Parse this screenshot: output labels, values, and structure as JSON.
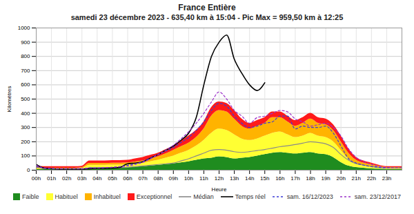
{
  "chart_data": {
    "type": "area",
    "title": "France Entière",
    "subtitle": "samedi 23 décembre 2023 - 635,40 km à 15:04 - Pic Max = 959,50 km à 12:25",
    "x_label": "Heure",
    "y_label": "Kilomètres",
    "x": [
      0,
      0.5,
      1,
      1.5,
      2,
      2.5,
      3,
      3.5,
      4,
      4.5,
      5,
      5.5,
      6,
      6.5,
      7,
      7.5,
      8,
      8.5,
      9,
      9.5,
      10,
      10.5,
      11,
      11.5,
      12,
      12.5,
      13,
      13.5,
      14,
      14.5,
      15,
      15.5,
      16,
      16.5,
      17,
      17.5,
      18,
      18.5,
      19,
      19.5,
      20,
      20.5,
      21,
      21.5,
      22,
      22.5,
      23,
      23.5,
      24
    ],
    "xlim": [
      0,
      24
    ],
    "xticks": [
      {
        "value": 0,
        "label": "00h"
      },
      {
        "value": 1,
        "label": "01h"
      },
      {
        "value": 2,
        "label": "02h"
      },
      {
        "value": 3,
        "label": "03h"
      },
      {
        "value": 4,
        "label": "04h"
      },
      {
        "value": 5,
        "label": "05h"
      },
      {
        "value": 6,
        "label": "06h"
      },
      {
        "value": 7,
        "label": "07h"
      },
      {
        "value": 8,
        "label": "08h"
      },
      {
        "value": 9,
        "label": "09h"
      },
      {
        "value": 10,
        "label": "10h"
      },
      {
        "value": 11,
        "label": "11h"
      },
      {
        "value": 12,
        "label": "12h"
      },
      {
        "value": 13,
        "label": "13h"
      },
      {
        "value": 14,
        "label": "14h"
      },
      {
        "value": 15,
        "label": "15h"
      },
      {
        "value": 16,
        "label": "16h"
      },
      {
        "value": 17,
        "label": "17h"
      },
      {
        "value": 18,
        "label": "18h"
      },
      {
        "value": 19,
        "label": "19h"
      },
      {
        "value": 20,
        "label": "20h"
      },
      {
        "value": 21,
        "label": "21h"
      },
      {
        "value": 22,
        "label": "22h"
      },
      {
        "value": 23,
        "label": "23h"
      }
    ],
    "ylim": [
      0,
      1000
    ],
    "yticks": [
      0,
      100,
      200,
      300,
      400,
      500,
      600,
      700,
      800,
      900,
      1000
    ],
    "grid": true,
    "legend": "bottom",
    "stacked": true,
    "series": [
      {
        "name": "Faible",
        "type": "area",
        "color": "#1f8c1f",
        "values": [
          5,
          5,
          5,
          5,
          5,
          5,
          5,
          18,
          18,
          18,
          18,
          18,
          20,
          22,
          25,
          30,
          35,
          40,
          45,
          52,
          60,
          70,
          80,
          85,
          95,
          90,
          80,
          85,
          90,
          100,
          110,
          120,
          125,
          120,
          115,
          120,
          125,
          115,
          110,
          90,
          55,
          30,
          20,
          15,
          10,
          8,
          5,
          5,
          5
        ]
      },
      {
        "name": "Habituel",
        "type": "area",
        "color": "#ffff33",
        "values": [
          5,
          5,
          5,
          5,
          5,
          5,
          7,
          17,
          17,
          17,
          18,
          18,
          20,
          23,
          25,
          30,
          35,
          45,
          55,
          68,
          80,
          100,
          130,
          175,
          195,
          190,
          170,
          135,
          120,
          120,
          130,
          140,
          145,
          130,
          115,
          120,
          135,
          125,
          120,
          110,
          85,
          50,
          25,
          17,
          15,
          10,
          7,
          7,
          7
        ]
      },
      {
        "name": "Inhabituel",
        "type": "area",
        "color": "#ffb300",
        "values": [
          8,
          5,
          5,
          5,
          5,
          5,
          6,
          13,
          13,
          13,
          14,
          14,
          12,
          13,
          15,
          20,
          25,
          30,
          40,
          45,
          50,
          60,
          80,
          120,
          130,
          130,
          110,
          90,
          80,
          90,
          90,
          110,
          100,
          90,
          80,
          90,
          100,
          90,
          90,
          80,
          60,
          40,
          25,
          18,
          15,
          10,
          8,
          8,
          8
        ]
      },
      {
        "name": "Exceptionnel",
        "type": "area",
        "color": "#ff1a1a",
        "values": [
          12,
          10,
          10,
          10,
          10,
          10,
          10,
          17,
          17,
          17,
          18,
          18,
          18,
          22,
          25,
          25,
          25,
          30,
          30,
          40,
          50,
          50,
          50,
          60,
          60,
          60,
          60,
          50,
          40,
          40,
          40,
          40,
          40,
          40,
          40,
          40,
          40,
          40,
          40,
          40,
          40,
          30,
          20,
          15,
          10,
          7,
          5,
          5,
          5
        ]
      },
      {
        "name": "Médian",
        "type": "line",
        "color": "#8a8a8a",
        "line_style": "solid",
        "values": [
          20,
          12,
          10,
          8,
          8,
          8,
          8,
          15,
          15,
          15,
          15,
          18,
          20,
          25,
          30,
          35,
          40,
          45,
          50,
          65,
          80,
          100,
          120,
          140,
          145,
          140,
          130,
          125,
          130,
          138,
          145,
          155,
          165,
          172,
          180,
          190,
          200,
          195,
          185,
          160,
          110,
          70,
          45,
          35,
          25,
          20,
          15,
          15,
          15
        ]
      },
      {
        "name": "Temps réel",
        "type": "line",
        "color": "#000000",
        "line_style": "solid",
        "values": [
          40,
          15,
          10,
          8,
          8,
          8,
          8,
          10,
          12,
          12,
          15,
          20,
          45,
          50,
          60,
          85,
          110,
          140,
          170,
          210,
          260,
          370,
          600,
          800,
          900,
          950,
          780,
          680,
          600,
          560,
          615,
          null,
          null,
          null,
          null,
          null,
          null,
          null,
          null,
          null,
          null,
          null,
          null,
          null,
          null,
          null,
          null,
          null,
          null
        ]
      },
      {
        "name": "sam. 16/12/2023",
        "type": "line",
        "color": "#3b3bd6",
        "line_style": "dashed",
        "values": [
          30,
          15,
          12,
          10,
          10,
          10,
          10,
          15,
          15,
          18,
          20,
          25,
          35,
          45,
          60,
          85,
          110,
          135,
          160,
          195,
          230,
          280,
          340,
          420,
          470,
          450,
          380,
          330,
          300,
          310,
          330,
          340,
          380,
          380,
          290,
          310,
          300,
          300,
          310,
          260,
          170,
          80,
          50,
          35,
          25,
          20,
          15,
          15,
          15
        ]
      },
      {
        "name": "sam. 23/12/2017",
        "type": "line",
        "color": "#9b30c9",
        "line_style": "dashed",
        "values": [
          35,
          15,
          12,
          10,
          10,
          10,
          10,
          15,
          15,
          18,
          20,
          25,
          30,
          40,
          55,
          80,
          110,
          140,
          175,
          220,
          270,
          330,
          400,
          480,
          550,
          500,
          420,
          380,
          330,
          370,
          380,
          400,
          420,
          410,
          360,
          340,
          310,
          320,
          330,
          300,
          240,
          150,
          90,
          60,
          40,
          25,
          18,
          15,
          15
        ]
      }
    ]
  }
}
